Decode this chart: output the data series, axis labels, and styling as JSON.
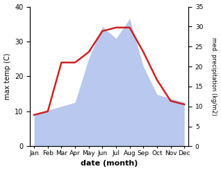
{
  "months": [
    "Jan",
    "Feb",
    "Mar",
    "Apr",
    "May",
    "Jun",
    "Jul",
    "Aug",
    "Sep",
    "Oct",
    "Nov",
    "Dec"
  ],
  "temperature": [
    9,
    10,
    24,
    24,
    27,
    33,
    34,
    34,
    27,
    19,
    13,
    12
  ],
  "precipitation": [
    8,
    9,
    10,
    11,
    22,
    30,
    27,
    32,
    20,
    13,
    12,
    11
  ],
  "temp_color": "#cc2222",
  "precip_color": "#b8c8ee",
  "temp_ylim": [
    0,
    40
  ],
  "precip_ylim": [
    0,
    35
  ],
  "temp_yticks": [
    0,
    10,
    20,
    30,
    40
  ],
  "precip_yticks": [
    0,
    5,
    10,
    15,
    20,
    25,
    30,
    35
  ],
  "xlabel": "date (month)",
  "ylabel_left": "max temp (C)",
  "ylabel_right": "med. precipitation (kg/m2)",
  "fig_width": 3.18,
  "fig_height": 2.47,
  "dpi": 100
}
